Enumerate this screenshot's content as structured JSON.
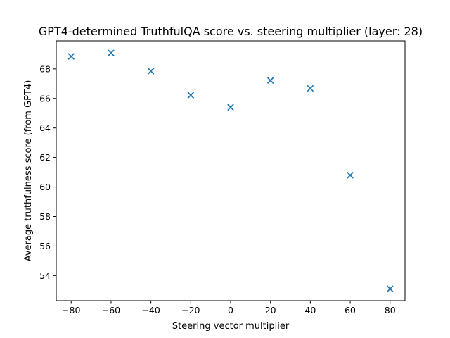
{
  "chart_data": {
    "type": "scatter",
    "title": "GPT4-determined TruthfulQA score vs. steering multiplier (layer: 28)",
    "xlabel": "Steering vector multiplier",
    "ylabel": "Average truthfulness score (from GPT4)",
    "x": [
      -80,
      -60,
      -40,
      -20,
      0,
      20,
      40,
      60,
      80
    ],
    "y": [
      68.85,
      69.08,
      67.85,
      66.22,
      65.4,
      67.22,
      66.68,
      60.8,
      53.1
    ],
    "xlim": [
      -87.5,
      87.5
    ],
    "ylim": [
      52.3,
      69.9
    ],
    "xticks": [
      -80,
      -60,
      -40,
      -20,
      0,
      20,
      40,
      60,
      80
    ],
    "xtick_labels": [
      "−80",
      "−60",
      "−40",
      "−20",
      "0",
      "20",
      "40",
      "60",
      "80"
    ],
    "yticks": [
      54,
      56,
      58,
      60,
      62,
      64,
      66,
      68
    ],
    "ytick_labels": [
      "54",
      "56",
      "58",
      "60",
      "62",
      "64",
      "66",
      "68"
    ],
    "marker": "x",
    "marker_color": "#1f77b4",
    "grid": false
  }
}
